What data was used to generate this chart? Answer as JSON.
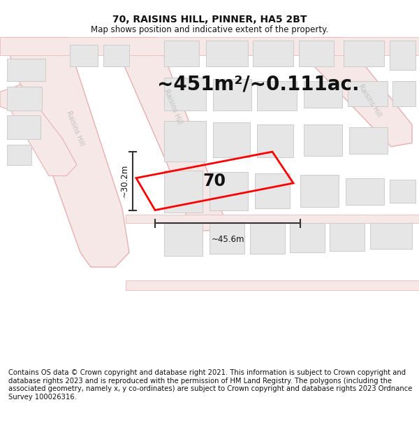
{
  "title_line1": "70, RAISINS HILL, PINNER, HA5 2BT",
  "title_line2": "Map shows position and indicative extent of the property.",
  "area_text": "~451m²/~0.111ac.",
  "property_label": "70",
  "width_label": "~45.6m",
  "height_label": "~30.2m",
  "footer_text": "Contains OS data © Crown copyright and database right 2021. This information is subject to Crown copyright and database rights 2023 and is reproduced with the permission of HM Land Registry. The polygons (including the associated geometry, namely x, y co-ordinates) are subject to Crown copyright and database rights 2023 Ordnance Survey 100026316.",
  "bg_color": "#f9f9f9",
  "road_fill": "#f7e8e8",
  "road_edge": "#e8b0b0",
  "building_fill": "#e6e6e6",
  "building_edge": "#cccccc",
  "property_color": "#ff0000",
  "dim_color": "#333333",
  "text_color": "#111111",
  "road_label_color": "#bbbbbb",
  "title_fontsize": 10,
  "subtitle_fontsize": 8.5,
  "area_fontsize": 20,
  "label_fontsize": 18,
  "dim_fontsize": 8.5,
  "footer_fontsize": 7.2
}
